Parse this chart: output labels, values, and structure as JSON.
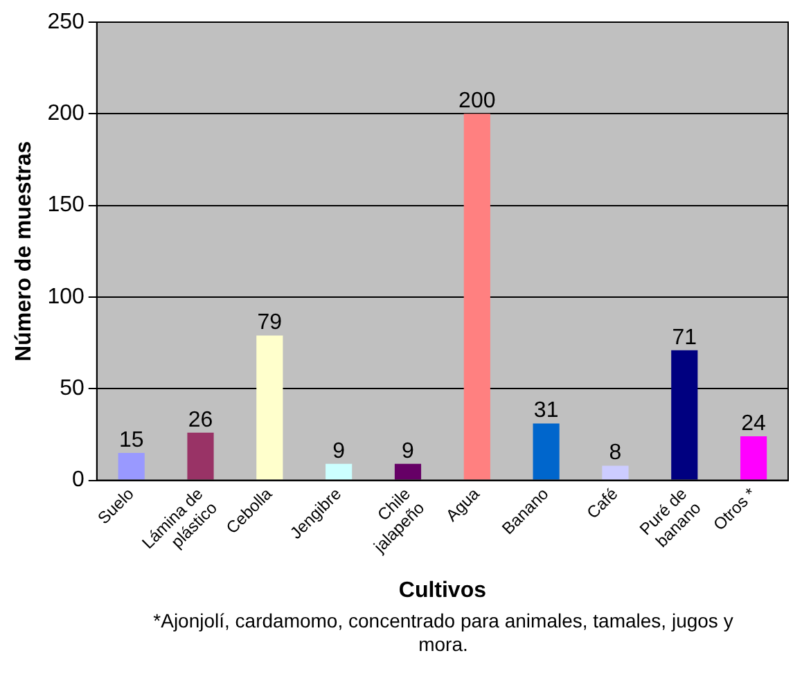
{
  "chart_data": {
    "type": "bar",
    "xlabel": "Cultivos",
    "ylabel": "Número de muestras",
    "categories": [
      "Suelo",
      "Lámina de plástico",
      "Cebolla",
      "Jengibre",
      "Chile jalapeño",
      "Agua",
      "Banano",
      "Café",
      "Puré de banano",
      "Otros *"
    ],
    "values": [
      15,
      26,
      79,
      9,
      9,
      200,
      31,
      8,
      71,
      24
    ],
    "colors": [
      "#9999ff",
      "#993366",
      "#ffffcc",
      "#ccffff",
      "#660066",
      "#ff8080",
      "#0066cc",
      "#ccccff",
      "#000080",
      "#ff00ff"
    ],
    "ylim": [
      0,
      250
    ],
    "yticks": [
      0,
      50,
      100,
      150,
      200,
      250
    ],
    "grid": "y",
    "data_labels": true,
    "legend": false,
    "annotations": [
      "*Ajonjolí, cardamomo, concentrado para animales, tamales, jugos y mora."
    ]
  }
}
